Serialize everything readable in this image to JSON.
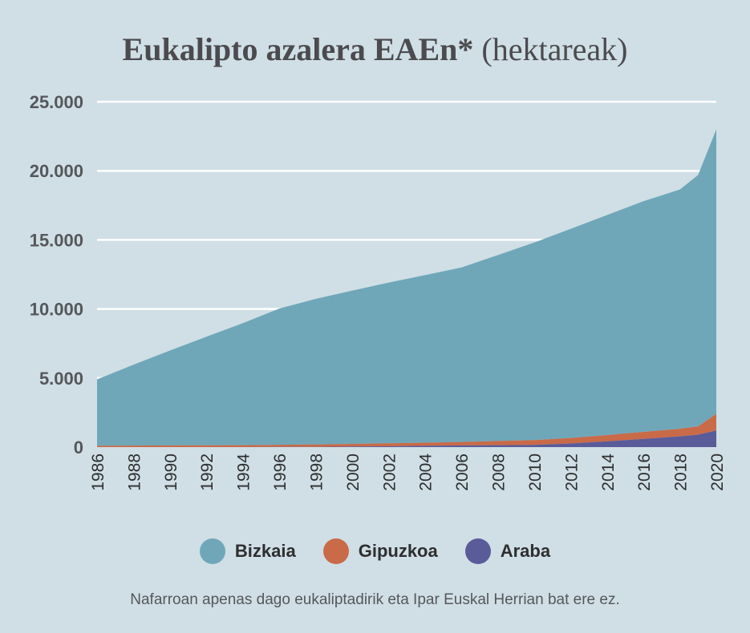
{
  "title": {
    "main": "Eukalipto azalera EAEn*",
    "unit": "(hektareak)"
  },
  "footnote": "Nafarroan apenas dago eukaliptadirik eta Ipar Euskal Herrian bat ere ez.",
  "chart_data": {
    "type": "area",
    "stacked": true,
    "ylim": [
      0,
      25000
    ],
    "yticks": [
      0,
      5000,
      10000,
      15000,
      20000,
      25000
    ],
    "ytick_labels": [
      "0",
      "5.000",
      "10.000",
      "15.000",
      "20.000",
      "25.000"
    ],
    "xlim": [
      1986,
      2020
    ],
    "xticks": [
      1986,
      1988,
      1990,
      1992,
      1994,
      1996,
      1998,
      2000,
      2002,
      2004,
      2006,
      2008,
      2010,
      2012,
      2014,
      2016,
      2018,
      2020
    ],
    "xtick_labels": [
      "1986",
      "1988",
      "1990",
      "1992",
      "1994",
      "1996",
      "1998",
      "2000",
      "2002",
      "2004",
      "2006",
      "2008",
      "2010",
      "2012",
      "2014",
      "2016",
      "2018",
      "2020"
    ],
    "x": [
      1986,
      1988,
      1990,
      1992,
      1994,
      1996,
      1998,
      2000,
      2002,
      2004,
      2006,
      2008,
      2010,
      2012,
      2014,
      2016,
      2018,
      2019,
      2020
    ],
    "grid": "horizontal",
    "legend_position": "bottom",
    "series": [
      {
        "name": "Araba",
        "color": "#5a5b99",
        "values": [
          0,
          0,
          0,
          0,
          0,
          10,
          20,
          40,
          60,
          90,
          120,
          140,
          160,
          260,
          420,
          600,
          780,
          900,
          1200
        ]
      },
      {
        "name": "Gipuzkoa",
        "color": "#c96a48",
        "values": [
          100,
          110,
          120,
          130,
          140,
          160,
          170,
          190,
          210,
          230,
          250,
          300,
          350,
          400,
          450,
          500,
          550,
          600,
          1200
        ]
      },
      {
        "name": "Bizkaia",
        "color": "#6fa7b9",
        "values": [
          4800,
          5860,
          6870,
          7860,
          8830,
          9860,
          10540,
          11090,
          11630,
          12130,
          12630,
          13460,
          14290,
          15140,
          15930,
          16700,
          17320,
          18200,
          20600
        ]
      }
    ]
  },
  "legend": [
    {
      "label": "Bizkaia",
      "color": "#6fa7b9"
    },
    {
      "label": "Gipuzkoa",
      "color": "#c96a48"
    },
    {
      "label": "Araba",
      "color": "#5a5b99"
    }
  ]
}
